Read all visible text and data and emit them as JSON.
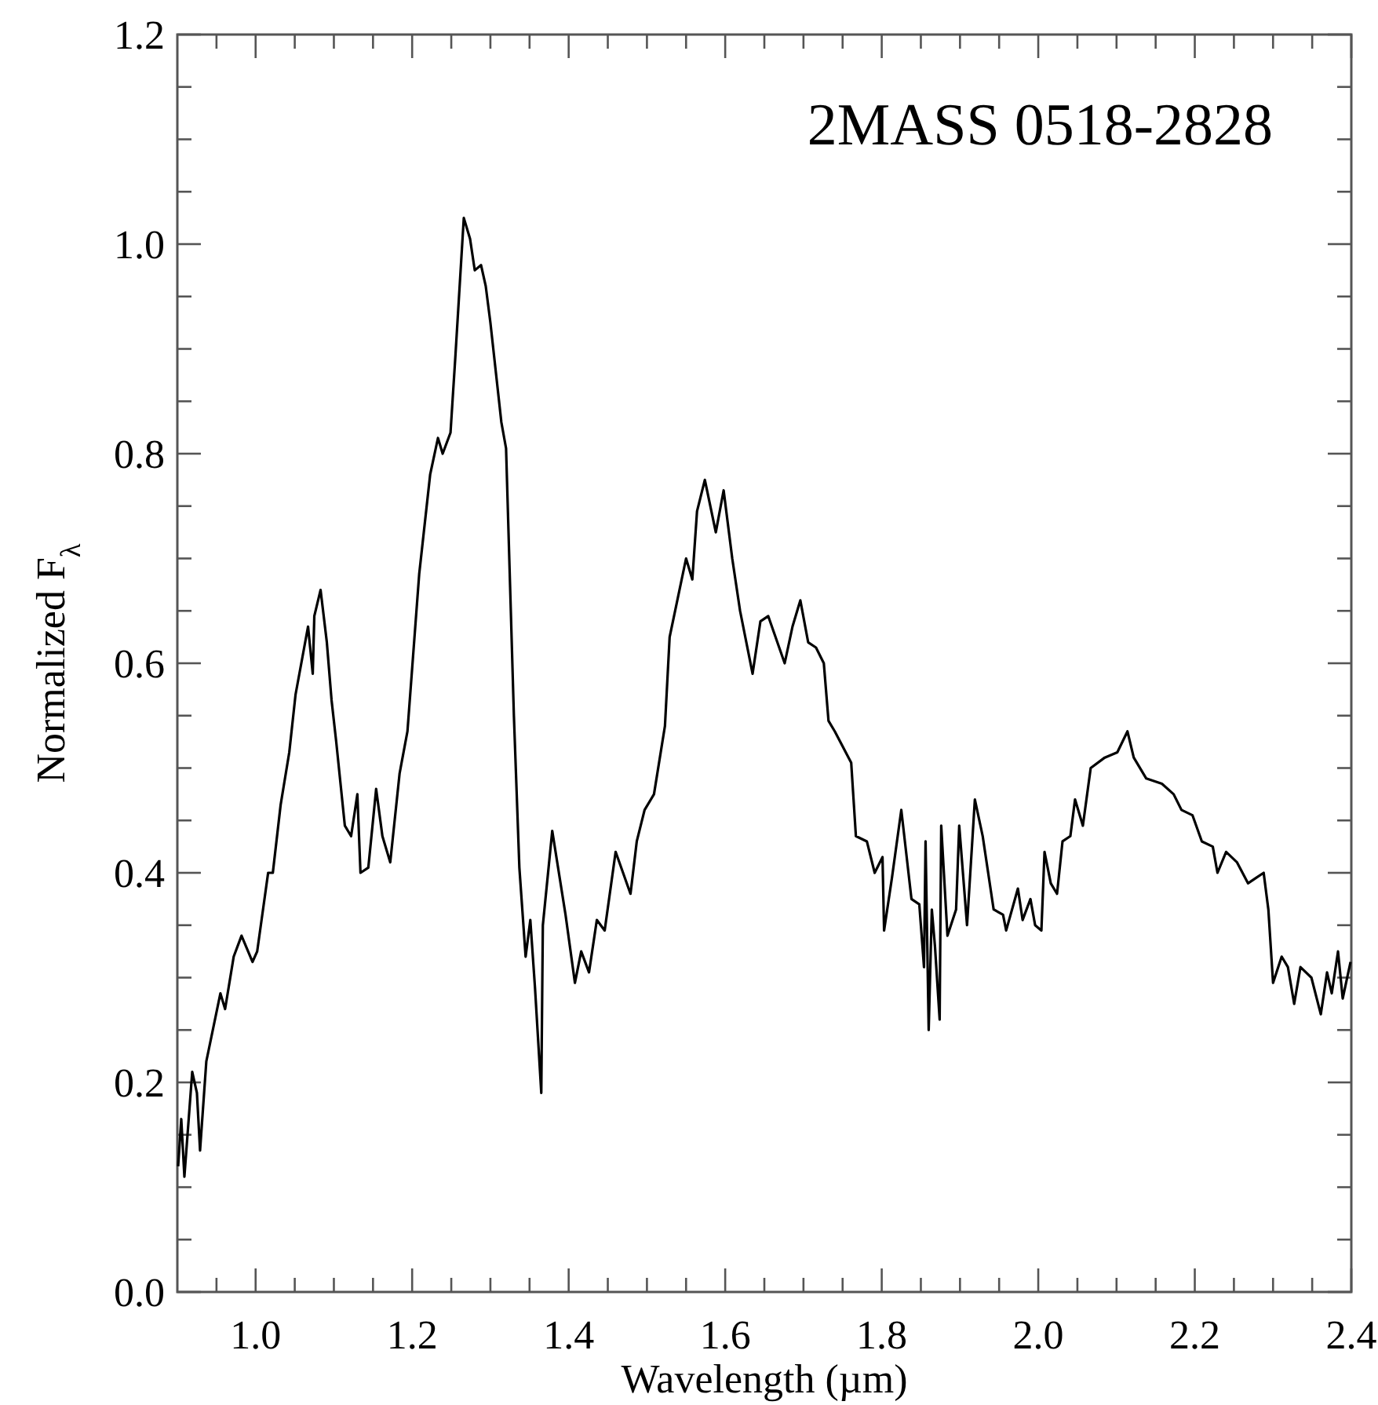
{
  "chart_data": {
    "type": "line",
    "xlabel": "Wavelength (µm)",
    "ylabel": "Normalized F$_{λ}$",
    "annotations": [
      "2MASS 0518-2828"
    ],
    "xlim": [
      0.9,
      2.4
    ],
    "ylim": [
      0,
      1.2
    ],
    "xticks": [
      {
        "value": 0.95,
        "label": null
      },
      {
        "value": 1.0,
        "label": "1.0"
      },
      {
        "value": 1.05,
        "label": null
      },
      {
        "value": 1.1,
        "label": null
      },
      {
        "value": 1.15,
        "label": null
      },
      {
        "value": 1.2,
        "label": "1.2"
      },
      {
        "value": 1.25,
        "label": null
      },
      {
        "value": 1.3,
        "label": null
      },
      {
        "value": 1.35,
        "label": null
      },
      {
        "value": 1.4,
        "label": "1.4"
      },
      {
        "value": 1.45,
        "label": null
      },
      {
        "value": 1.5,
        "label": null
      },
      {
        "value": 1.55,
        "label": null
      },
      {
        "value": 1.6,
        "label": "1.6"
      },
      {
        "value": 1.65,
        "label": null
      },
      {
        "value": 1.7,
        "label": null
      },
      {
        "value": 1.75,
        "label": null
      },
      {
        "value": 1.8,
        "label": "1.8"
      },
      {
        "value": 1.85,
        "label": null
      },
      {
        "value": 1.9,
        "label": null
      },
      {
        "value": 1.95,
        "label": null
      },
      {
        "value": 2.0,
        "label": "2.0"
      },
      {
        "value": 2.05,
        "label": null
      },
      {
        "value": 2.1,
        "label": null
      },
      {
        "value": 2.15,
        "label": null
      },
      {
        "value": 2.2,
        "label": "2.2"
      },
      {
        "value": 2.25,
        "label": null
      },
      {
        "value": 2.3,
        "label": null
      },
      {
        "value": 2.35,
        "label": null
      },
      {
        "value": 2.4,
        "label": "2.4"
      }
    ],
    "yticks": [
      {
        "value": 0,
        "label": "0.0"
      },
      {
        "value": 0.05,
        "label": null
      },
      {
        "value": 0.1,
        "label": null
      },
      {
        "value": 0.15,
        "label": null
      },
      {
        "value": 0.2,
        "label": "0.2"
      },
      {
        "value": 0.25,
        "label": null
      },
      {
        "value": 0.3,
        "label": null
      },
      {
        "value": 0.35,
        "label": null
      },
      {
        "value": 0.4,
        "label": "0.4"
      },
      {
        "value": 0.45,
        "label": null
      },
      {
        "value": 0.5,
        "label": null
      },
      {
        "value": 0.55,
        "label": null
      },
      {
        "value": 0.6,
        "label": "0.6"
      },
      {
        "value": 0.65,
        "label": null
      },
      {
        "value": 0.7,
        "label": null
      },
      {
        "value": 0.75,
        "label": null
      },
      {
        "value": 0.8,
        "label": "0.8"
      },
      {
        "value": 0.85,
        "label": null
      },
      {
        "value": 0.9,
        "label": null
      },
      {
        "value": 0.95,
        "label": null
      },
      {
        "value": 1.0,
        "label": "1.0"
      },
      {
        "value": 1.05,
        "label": null
      },
      {
        "value": 1.1,
        "label": null
      },
      {
        "value": 1.15,
        "label": null
      },
      {
        "value": 1.2,
        "label": "1.2"
      }
    ],
    "grid": false,
    "marker": "none",
    "line_style": "solid",
    "series": [
      {
        "color": "#000000",
        "x": [
          0.901,
          0.905,
          0.909,
          0.919,
          0.925,
          0.929,
          0.937,
          0.955,
          0.961,
          0.972,
          0.982,
          0.996,
          1.002,
          1.016,
          1.022,
          1.032,
          1.043,
          1.051,
          1.067,
          1.073,
          1.075,
          1.083,
          1.091,
          1.097,
          1.103,
          1.114,
          1.122,
          1.13,
          1.134,
          1.144,
          1.154,
          1.162,
          1.172,
          1.184,
          1.194,
          1.209,
          1.223,
          1.233,
          1.239,
          1.249,
          1.255,
          1.266,
          1.274,
          1.28,
          1.288,
          1.294,
          1.3,
          1.314,
          1.32,
          1.33,
          1.337,
          1.345,
          1.351,
          1.357,
          1.365,
          1.367,
          1.379,
          1.396,
          1.408,
          1.416,
          1.426,
          1.436,
          1.446,
          1.46,
          1.479,
          1.487,
          1.497,
          1.509,
          1.523,
          1.529,
          1.55,
          1.558,
          1.564,
          1.574,
          1.588,
          1.598,
          1.609,
          1.619,
          1.635,
          1.645,
          1.655,
          1.676,
          1.686,
          1.696,
          1.706,
          1.716,
          1.726,
          1.732,
          1.74,
          1.761,
          1.767,
          1.781,
          1.791,
          1.801,
          1.803,
          1.813,
          1.825,
          1.838,
          1.848,
          1.854,
          1.856,
          1.86,
          1.864,
          1.868,
          1.874,
          1.876,
          1.884,
          1.895,
          1.899,
          1.909,
          1.919,
          1.929,
          1.943,
          1.955,
          1.959,
          1.974,
          1.98,
          1.99,
          1.996,
          2.004,
          2.008,
          2.016,
          2.024,
          2.031,
          2.041,
          2.047,
          2.057,
          2.067,
          2.085,
          2.101,
          2.114,
          2.122,
          2.138,
          2.158,
          2.173,
          2.183,
          2.197,
          2.209,
          2.223,
          2.229,
          2.24,
          2.254,
          2.268,
          2.278,
          2.288,
          2.294,
          2.3,
          2.311,
          2.319,
          2.327,
          2.335,
          2.349,
          2.361,
          2.369,
          2.375,
          2.383,
          2.389,
          2.399
        ],
        "values": [
          0.12,
          0.165,
          0.11,
          0.21,
          0.19,
          0.135,
          0.22,
          0.285,
          0.27,
          0.32,
          0.34,
          0.315,
          0.325,
          0.4,
          0.4,
          0.465,
          0.515,
          0.57,
          0.635,
          0.59,
          0.645,
          0.67,
          0.62,
          0.565,
          0.525,
          0.445,
          0.435,
          0.475,
          0.4,
          0.405,
          0.48,
          0.435,
          0.41,
          0.495,
          0.535,
          0.685,
          0.78,
          0.815,
          0.8,
          0.82,
          0.89,
          1.025,
          1.005,
          0.975,
          0.98,
          0.96,
          0.925,
          0.83,
          0.805,
          0.55,
          0.405,
          0.32,
          0.355,
          0.29,
          0.19,
          0.35,
          0.44,
          0.36,
          0.295,
          0.325,
          0.305,
          0.355,
          0.345,
          0.42,
          0.38,
          0.43,
          0.46,
          0.475,
          0.54,
          0.625,
          0.7,
          0.68,
          0.745,
          0.775,
          0.725,
          0.765,
          0.7,
          0.65,
          0.59,
          0.64,
          0.645,
          0.6,
          0.635,
          0.66,
          0.62,
          0.615,
          0.6,
          0.545,
          0.535,
          0.505,
          0.435,
          0.43,
          0.4,
          0.415,
          0.345,
          0.395,
          0.46,
          0.375,
          0.37,
          0.31,
          0.43,
          0.25,
          0.365,
          0.33,
          0.26,
          0.445,
          0.34,
          0.365,
          0.445,
          0.35,
          0.47,
          0.435,
          0.365,
          0.36,
          0.345,
          0.385,
          0.355,
          0.375,
          0.35,
          0.345,
          0.42,
          0.39,
          0.38,
          0.43,
          0.435,
          0.47,
          0.445,
          0.5,
          0.51,
          0.515,
          0.535,
          0.51,
          0.49,
          0.485,
          0.475,
          0.46,
          0.455,
          0.43,
          0.425,
          0.4,
          0.42,
          0.41,
          0.39,
          0.395,
          0.4,
          0.365,
          0.295,
          0.32,
          0.31,
          0.275,
          0.31,
          0.3,
          0.265,
          0.305,
          0.285,
          0.325,
          0.28,
          0.315
        ]
      }
    ]
  }
}
